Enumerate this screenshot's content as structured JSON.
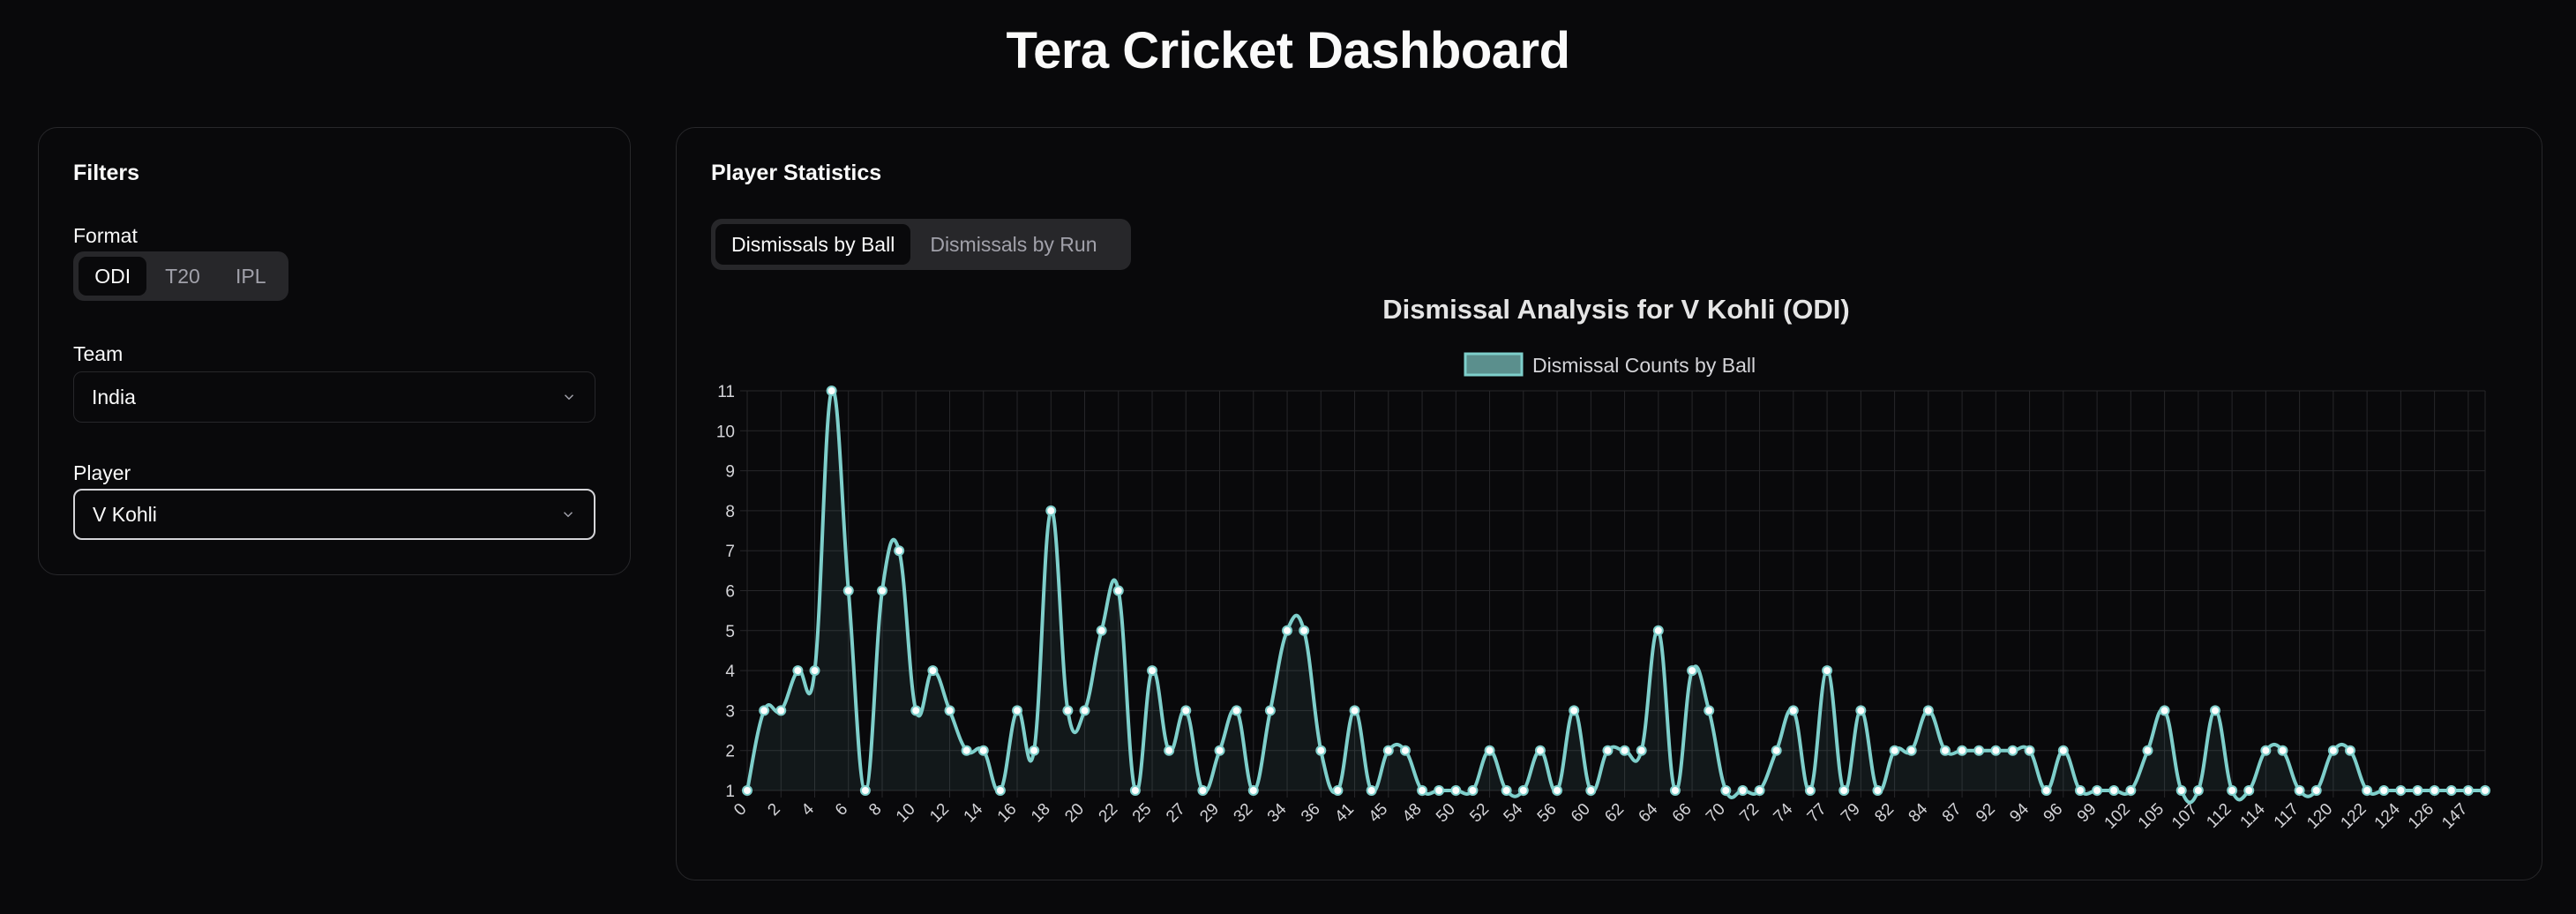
{
  "header": {
    "title": "Tera Cricket Dashboard"
  },
  "filters": {
    "title": "Filters",
    "format": {
      "label": "Format",
      "options": [
        "ODI",
        "T20",
        "IPL"
      ],
      "selected": "ODI"
    },
    "team": {
      "label": "Team",
      "value": "India"
    },
    "player": {
      "label": "Player",
      "value": "V Kohli"
    }
  },
  "stats": {
    "title": "Player Statistics",
    "tabs": [
      {
        "label": "Dismissals by Ball",
        "active": true
      },
      {
        "label": "Dismissals by Run",
        "active": false
      }
    ]
  },
  "colors": {
    "line": "#7ecfcb",
    "fill": "rgba(126,207,203,0.08)",
    "legend_fill": "#5b8f8d",
    "grid": "#27272a"
  },
  "chart_data": {
    "type": "line",
    "title": "Dismissal Analysis for V Kohli (ODI)",
    "xlabel": "",
    "ylabel": "",
    "legend": "top-center",
    "grid": true,
    "ylim": [
      1,
      11
    ],
    "yticks": [
      1,
      2,
      3,
      4,
      5,
      6,
      7,
      8,
      9,
      10,
      11
    ],
    "series": [
      {
        "name": "Dismissal Counts by Ball",
        "x": [
          0,
          1,
          2,
          3,
          4,
          5,
          6,
          7,
          8,
          9,
          10,
          11,
          12,
          13,
          14,
          15,
          16,
          17,
          18,
          19,
          20,
          21,
          22,
          23,
          25,
          26,
          27,
          28,
          29,
          30,
          32,
          33,
          34,
          35,
          36,
          37,
          39,
          41,
          42,
          45,
          46,
          48,
          49,
          50,
          51,
          52,
          53,
          54,
          55,
          56,
          57,
          60,
          61,
          62,
          63,
          64,
          65,
          66,
          67,
          70,
          71,
          72,
          73,
          74,
          75,
          77,
          78,
          79,
          81,
          82,
          83,
          84,
          85,
          87,
          88,
          92,
          93,
          94,
          95,
          96,
          98,
          99,
          100,
          102,
          103,
          105,
          106,
          107,
          109,
          112,
          113,
          114,
          116,
          117,
          119,
          120,
          121,
          122,
          123,
          124,
          125,
          126,
          127,
          147
        ],
        "values": [
          1,
          3,
          3,
          4,
          4,
          11,
          6,
          1,
          6,
          7,
          3,
          4,
          3,
          2,
          2,
          1,
          3,
          2,
          8,
          3,
          3,
          5,
          6,
          1,
          4,
          2,
          3,
          1,
          2,
          3,
          1,
          3,
          5,
          5,
          2,
          1,
          3,
          1,
          2,
          2,
          1,
          1,
          1,
          1,
          2,
          1,
          1,
          2,
          1,
          3,
          1,
          2,
          2,
          2,
          5,
          1,
          4,
          3,
          1,
          1,
          1,
          2,
          3,
          1,
          4,
          1,
          3,
          1,
          2,
          2,
          3,
          2,
          2,
          2,
          2,
          2,
          2,
          1,
          2,
          1,
          1,
          1,
          1,
          2,
          3,
          1,
          1,
          3,
          1,
          1,
          2,
          2,
          1,
          1,
          2,
          2,
          1,
          1,
          1,
          1,
          1,
          1,
          1,
          1
        ]
      }
    ],
    "xtick_labels": [
      "0",
      "2",
      "4",
      "6",
      "8",
      "10",
      "12",
      "14",
      "16",
      "18",
      "20",
      "22",
      "25",
      "27",
      "29",
      "32",
      "34",
      "36",
      "41",
      "45",
      "48",
      "50",
      "52",
      "54",
      "56",
      "60",
      "62",
      "64",
      "66",
      "70",
      "72",
      "74",
      "77",
      "79",
      "82",
      "84",
      "87",
      "92",
      "94",
      "96",
      "99",
      "102",
      "105",
      "107",
      "112",
      "114",
      "117",
      "120",
      "122",
      "124",
      "126",
      "147"
    ],
    "xtick_every": 2
  }
}
